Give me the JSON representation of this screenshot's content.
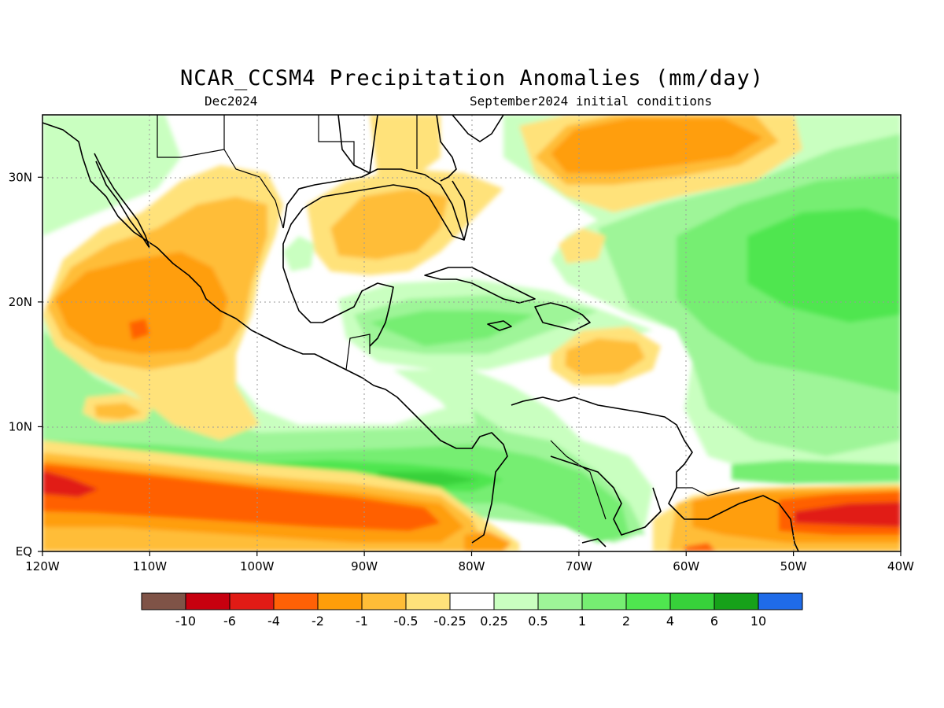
{
  "title": "NCAR_CCSM4 Precipitation Anomalies (mm/day)",
  "subtitle_left": "Dec2024",
  "subtitle_right": "September2024 initial conditions",
  "lon_ticks": [
    "120W",
    "110W",
    "100W",
    "90W",
    "80W",
    "70W",
    "60W",
    "50W",
    "40W"
  ],
  "lat_ticks": [
    "30N",
    "20N",
    "10N",
    "EQ"
  ],
  "colorbar": {
    "colors": [
      "#7f5347",
      "#c7000f",
      "#e11b15",
      "#ff6106",
      "#ff9e0a",
      "#ffbd37",
      "#ffe27a",
      "#ffffff",
      "#c9ffc0",
      "#9ef598",
      "#76ee72",
      "#4fe64f",
      "#37d13a",
      "#16a119",
      "#1f6be8"
    ],
    "labels": [
      "-10",
      "-6",
      "-4",
      "-2",
      "-1",
      "-0.5",
      "-0.25",
      "0.25",
      "0.5",
      "1",
      "2",
      "4",
      "6",
      "10"
    ]
  },
  "map_extent": {
    "lon": [
      -120,
      -40
    ],
    "lat": [
      0,
      35
    ]
  }
}
